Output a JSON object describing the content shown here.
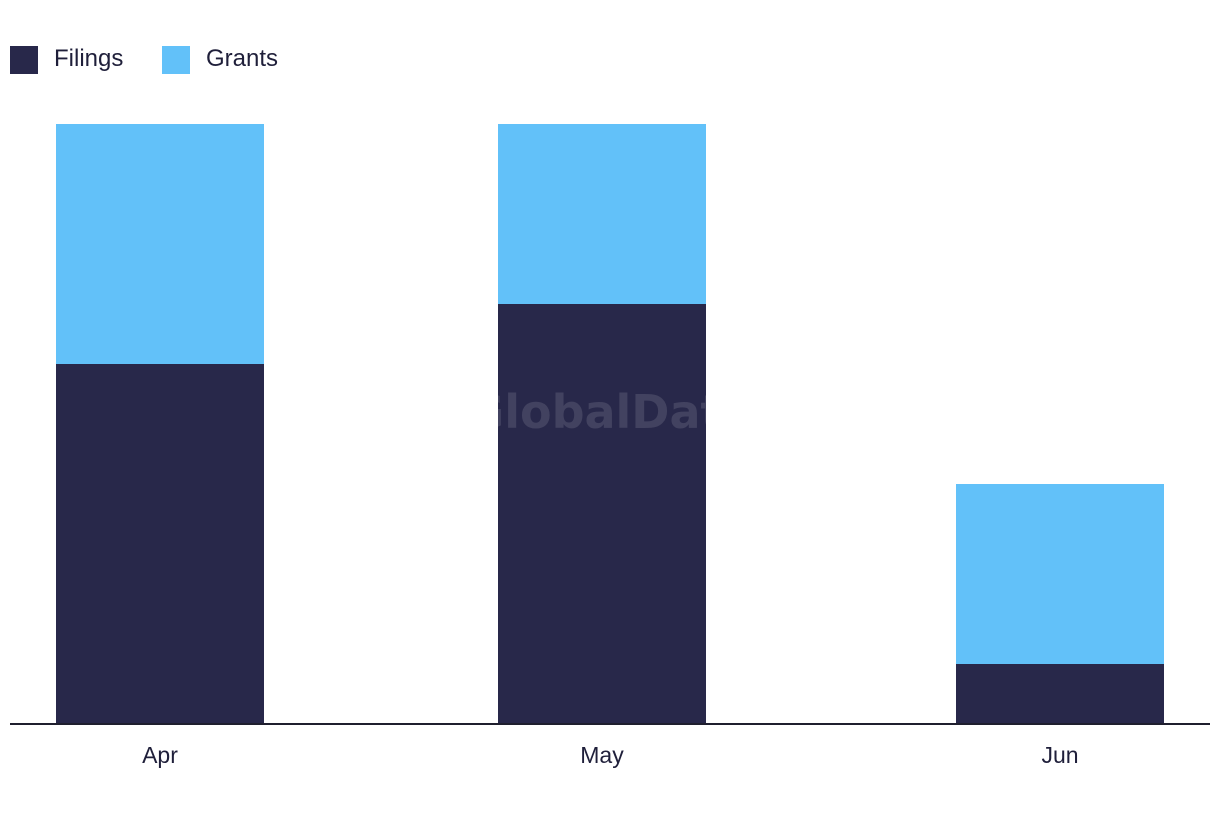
{
  "watermark": "GlobalData",
  "chart_data": {
    "type": "bar",
    "stacked": true,
    "categories": [
      "Apr",
      "May",
      "Jun"
    ],
    "series": [
      {
        "name": "Filings",
        "color": "#28284a",
        "values": [
          6,
          7,
          1
        ]
      },
      {
        "name": "Grants",
        "color": "#62c1f9",
        "values": [
          4,
          3,
          3
        ]
      }
    ],
    "title": "",
    "xlabel": "",
    "ylabel": "",
    "ylim": [
      0,
      10
    ],
    "grid": false,
    "legend": "top-left",
    "y_axis_shown": false
  }
}
